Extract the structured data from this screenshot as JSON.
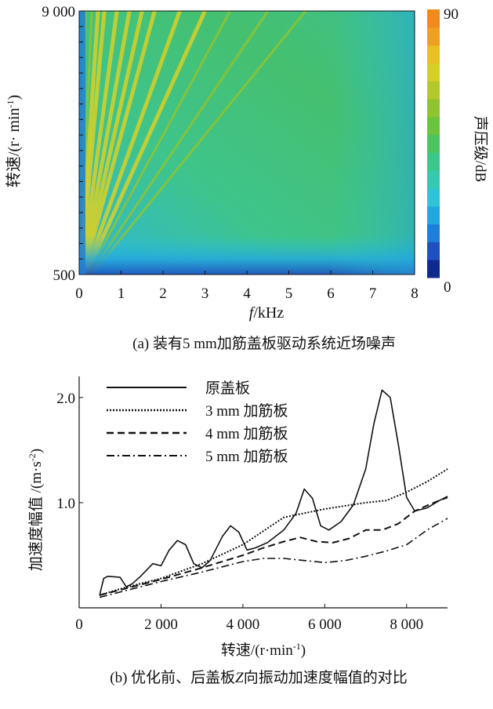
{
  "chart_data": [
    {
      "type": "heatmap",
      "xlabel_italic": "f",
      "xlabel_rest": "/kHz",
      "ylabel": "转速/(r· min",
      "ylabel_sup": "-1",
      "ylabel_close": ")",
      "x_ticks": [
        "0",
        "1",
        "2",
        "3",
        "4",
        "5",
        "6",
        "7",
        "8"
      ],
      "xlim": [
        0,
        8
      ],
      "y_ticks": [
        "500",
        "9 000"
      ],
      "ylim": [
        500,
        9000
      ],
      "colorbar": {
        "label": "声压级/dB",
        "ticks": [
          "0",
          "90"
        ],
        "range": [
          0,
          90
        ],
        "colors": [
          "#0d2a8c",
          "#1f4fc0",
          "#1f7fd8",
          "#22a6e0",
          "#2cc4d6",
          "#37c9b0",
          "#3cc88a",
          "#4cc464",
          "#6cc33c",
          "#8fc431",
          "#b4c82a",
          "#d6cf24",
          "#e8c020",
          "#f0a020",
          "#f08a1e"
        ]
      },
      "orders": [
        1,
        2,
        3,
        4,
        6,
        8,
        10,
        12,
        16,
        20,
        24,
        30,
        36
      ],
      "caption": "(a)  装有5 mm加筋盖板驱动系统近场噪声"
    },
    {
      "type": "line",
      "xlabel": "转速/(r·min",
      "xlabel_sup": "-1",
      "xlabel_close": ")",
      "ylabel": "加速度幅值 /(m·s",
      "ylabel_sup": "-2",
      "ylabel_close": ")",
      "x_ticks": [
        "0",
        "2 000",
        "4 000",
        "6 000",
        "8 000"
      ],
      "x_tick_values": [
        0,
        2000,
        4000,
        6000,
        8000
      ],
      "y_ticks": [
        "1.0",
        "2.0"
      ],
      "y_tick_values": [
        1.0,
        2.0
      ],
      "xlim": [
        0,
        9000
      ],
      "ylim": [
        0,
        2.2
      ],
      "series": [
        {
          "name": "原盖板",
          "dash": "solid",
          "x": [
            500,
            600,
            700,
            1000,
            1150,
            1300,
            1500,
            1800,
            2000,
            2200,
            2400,
            2600,
            2800,
            3000,
            3200,
            3500,
            3700,
            3900,
            4100,
            4300,
            4600,
            5000,
            5300,
            5500,
            5700,
            5900,
            6100,
            6400,
            6700,
            7000,
            7200,
            7400,
            7600,
            7800,
            8000,
            8200,
            8500,
            8800,
            9000
          ],
          "y": [
            0.12,
            0.28,
            0.3,
            0.29,
            0.2,
            0.23,
            0.3,
            0.42,
            0.4,
            0.55,
            0.64,
            0.6,
            0.42,
            0.38,
            0.45,
            0.68,
            0.78,
            0.72,
            0.55,
            0.57,
            0.62,
            0.74,
            0.9,
            1.13,
            1.04,
            0.78,
            0.74,
            0.82,
            0.98,
            1.32,
            1.75,
            2.07,
            2.0,
            1.55,
            1.05,
            0.92,
            0.95,
            1.02,
            1.06
          ]
        },
        {
          "name": "3 mm 加筋板",
          "dash": "dotted",
          "x": [
            500,
            1000,
            2000,
            3000,
            4000,
            5000,
            6000,
            7000,
            7500,
            8000,
            8500,
            9000
          ],
          "y": [
            0.12,
            0.18,
            0.28,
            0.42,
            0.6,
            0.86,
            0.94,
            1.0,
            1.02,
            1.1,
            1.2,
            1.32
          ]
        },
        {
          "name": "4 mm 加筋板",
          "dash": "dashed",
          "x": [
            500,
            1000,
            2000,
            3000,
            4000,
            4500,
            5000,
            5400,
            5800,
            6200,
            6600,
            7000,
            7400,
            7800,
            8200,
            8600,
            9000
          ],
          "y": [
            0.12,
            0.17,
            0.27,
            0.38,
            0.5,
            0.57,
            0.63,
            0.67,
            0.63,
            0.62,
            0.66,
            0.74,
            0.74,
            0.8,
            0.92,
            0.99,
            1.05
          ]
        },
        {
          "name": "5 mm 加筋板",
          "dash": "dashdot",
          "x": [
            500,
            1000,
            2000,
            3000,
            4000,
            4500,
            5000,
            5500,
            6000,
            6500,
            7000,
            7500,
            8000,
            8500,
            9000
          ],
          "y": [
            0.1,
            0.15,
            0.25,
            0.34,
            0.44,
            0.47,
            0.47,
            0.45,
            0.43,
            0.45,
            0.49,
            0.54,
            0.6,
            0.74,
            0.85
          ]
        }
      ],
      "legend_position": "top-left",
      "caption_pre": "(b)  优化前、后盖板",
      "caption_italic": "Z",
      "caption_post": "向振动加速度幅值的对比"
    }
  ]
}
